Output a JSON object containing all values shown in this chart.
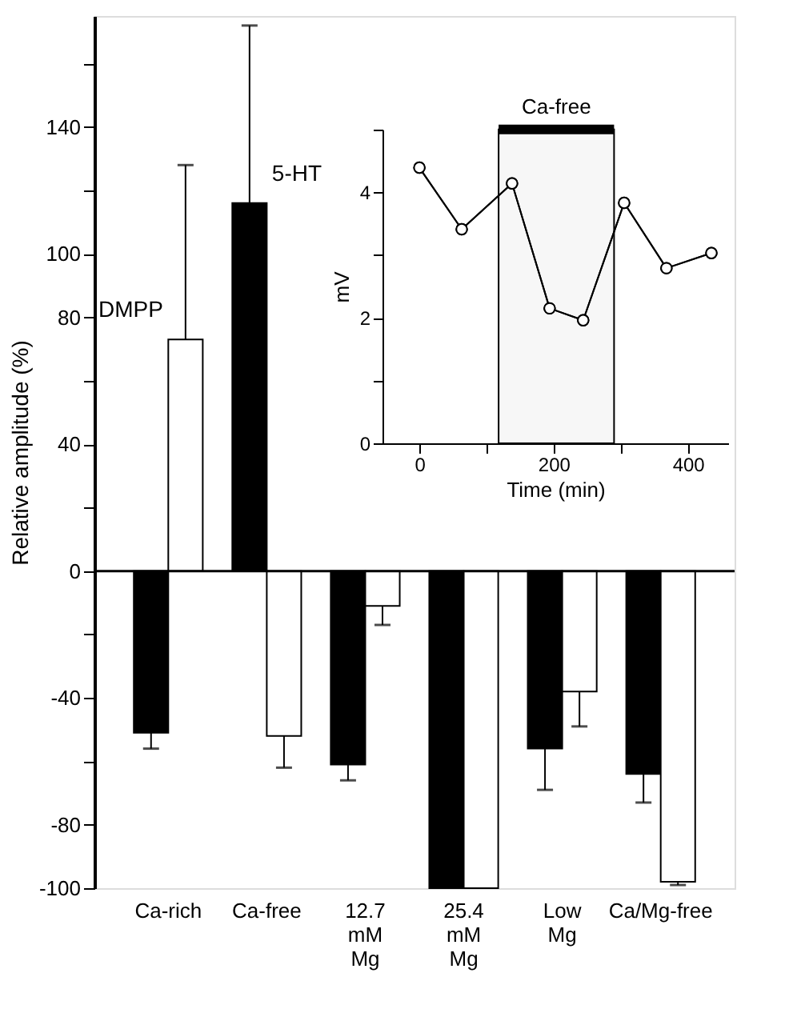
{
  "chart_data": [
    {
      "type": "bar",
      "ylabel": "Relative amplitude (%)",
      "categories": [
        "Ca-rich",
        "Ca-free",
        "12.7 mM Mg",
        "25.4 mM Mg",
        "Low Mg",
        "Ca/Mg-free"
      ],
      "series": [
        {
          "name": "5-HT",
          "color": "#000000",
          "values": [
            -51,
            116,
            -61,
            -100,
            -56,
            -64
          ],
          "errors": [
            [
              -56,
              -51
            ],
            [
              116,
              172
            ],
            [
              -66,
              -61
            ],
            null,
            [
              -69,
              -56
            ],
            [
              -73,
              -64
            ]
          ]
        },
        {
          "name": "DMPP",
          "color": "#ffffff",
          "values": [
            73,
            -52,
            -11,
            -100,
            -38,
            -98
          ],
          "errors": [
            [
              73,
              128
            ],
            [
              -62,
              -52
            ],
            [
              -17,
              -11
            ],
            null,
            [
              -49,
              -38
            ],
            [
              -99,
              -98
            ]
          ]
        }
      ],
      "ylim": [
        -100,
        175
      ],
      "yticks": [
        -100,
        -80,
        {
          "value": -60,
          "label": null
        },
        -40,
        {
          "value": -20,
          "label": null
        },
        0,
        {
          "value": 20,
          "label": null
        },
        40,
        {
          "value": 60,
          "label": null
        },
        80,
        100,
        {
          "value": 120,
          "label": null
        },
        140,
        {
          "value": 160,
          "label": null
        }
      ],
      "ref_lines": [
        {
          "axis": "y",
          "value": 0
        }
      ]
    },
    {
      "type": "line",
      "xlabel": "Time (min)",
      "ylabel": "mV",
      "x": [
        0,
        63,
        138,
        194,
        244,
        305,
        368,
        435
      ],
      "values": [
        4.39,
        3.41,
        4.14,
        2.15,
        1.96,
        3.83,
        2.79,
        3.03
      ],
      "color": "#000000",
      "marker": "circle",
      "xlim": [
        -55,
        460
      ],
      "xticks": [
        0,
        {
          "value": 100,
          "label": null
        },
        200,
        {
          "value": 300,
          "label": null
        },
        400
      ],
      "ylim": [
        0,
        5
      ],
      "yticks": [
        0,
        {
          "value": 1,
          "label": null
        },
        2,
        {
          "value": 3,
          "label": null
        },
        4,
        {
          "value": 5,
          "label": null
        }
      ],
      "bands": [
        {
          "axis": "x",
          "from": 118,
          "to": 290,
          "label": "Ca-free",
          "color": "#000000"
        }
      ]
    }
  ]
}
